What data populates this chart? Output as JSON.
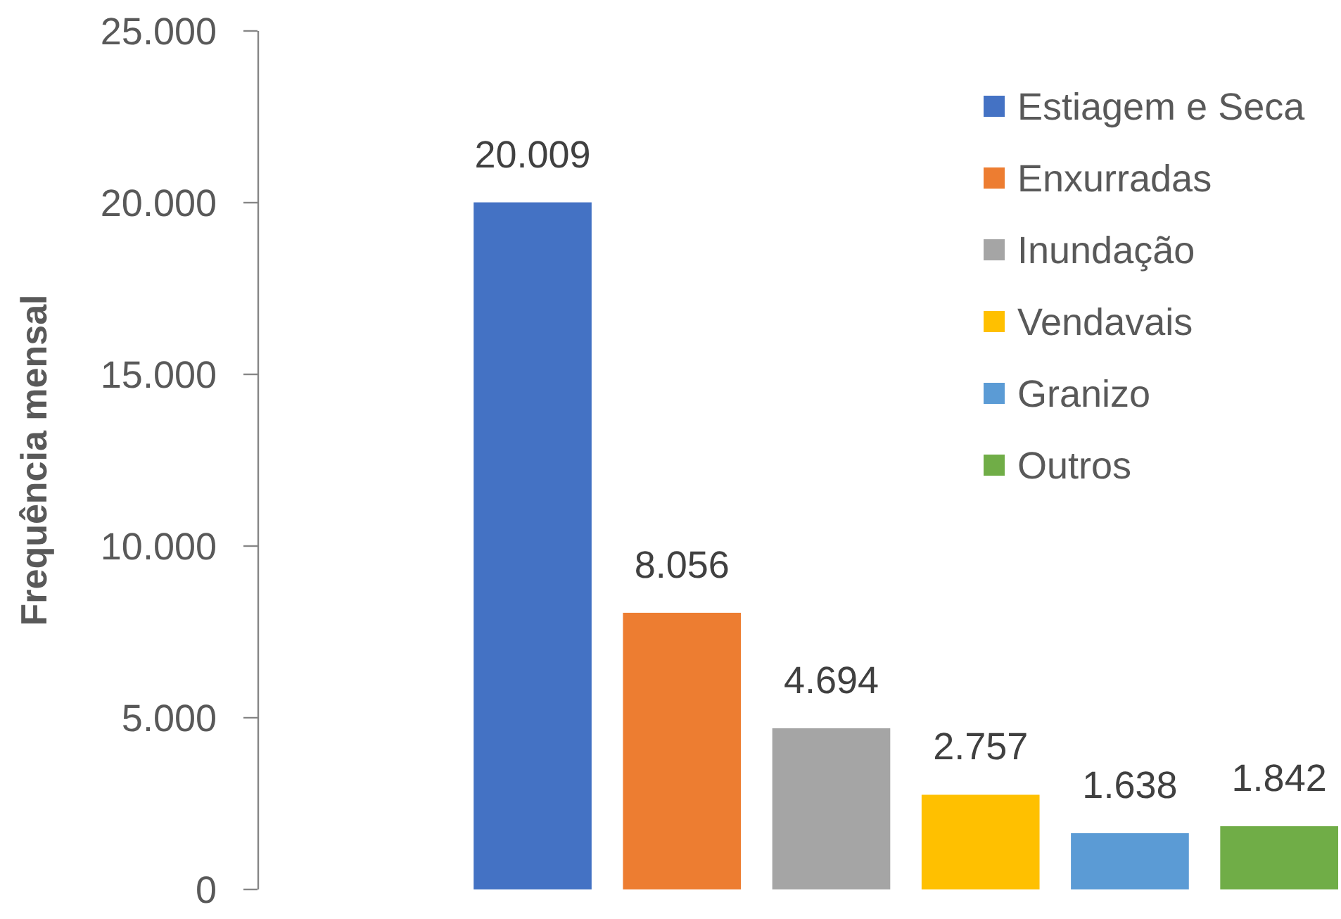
{
  "chart_data": {
    "type": "bar",
    "ylabel": "Frequência mensal",
    "categories": [
      null
    ],
    "series": [
      {
        "name": "Estiagem e Seca",
        "color": "#4472c4",
        "values": [
          20009
        ],
        "value_labels": [
          "20.009"
        ]
      },
      {
        "name": "Enxurradas",
        "color": "#ed7d31",
        "values": [
          8056
        ],
        "value_labels": [
          "8.056"
        ]
      },
      {
        "name": "Inundação",
        "color": "#a5a5a5",
        "values": [
          4694
        ],
        "value_labels": [
          "4.694"
        ]
      },
      {
        "name": "Vendavais",
        "color": "#ffc000",
        "values": [
          2757
        ],
        "value_labels": [
          "2.757"
        ]
      },
      {
        "name": "Granizo",
        "color": "#5b9bd5",
        "values": [
          1638
        ],
        "value_labels": [
          "1.638"
        ]
      },
      {
        "name": "Outros",
        "color": "#70ad47",
        "values": [
          1842
        ],
        "value_labels": [
          "1.842"
        ]
      }
    ],
    "ylim": [
      0,
      25000
    ],
    "yticks": [
      0,
      {
        "value": 5000,
        "label": "5.000"
      },
      {
        "value": 10000,
        "label": "10.000"
      },
      {
        "value": 15000,
        "label": "15.000"
      },
      {
        "value": 20000,
        "label": "20.000"
      },
      {
        "value": 25000,
        "label": "25.000"
      }
    ],
    "legend": "top right",
    "tick_labels": "y"
  }
}
